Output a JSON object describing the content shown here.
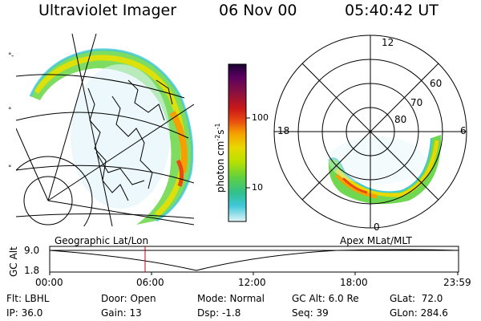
{
  "header": {
    "title": "Ultraviolet Imager",
    "date": "06 Nov 00",
    "time": "05:40:42 UT"
  },
  "colorbar": {
    "label_main": "photon cm",
    "label_exp1": "-2",
    "label_mid": "s",
    "label_exp2": "-1",
    "ticks": [
      "100",
      "10"
    ],
    "colors": [
      "#1a0030",
      "#5a0060",
      "#8a1040",
      "#c81818",
      "#e84a10",
      "#f5a000",
      "#e8d800",
      "#b8e000",
      "#60d040",
      "#30c090",
      "#40c8d8",
      "#90e0f0",
      "#e0f4f8"
    ]
  },
  "polar_plot": {
    "mlt_labels": [
      "12",
      "18",
      "6",
      "0"
    ],
    "lat_labels": [
      "60",
      "70",
      "80"
    ]
  },
  "panels": {
    "left_label": "Geographic Lat/Lon",
    "right_label": "Apex MLat/MLT"
  },
  "altitude_plot": {
    "axis_label": "GC Alt",
    "y_ticks": [
      "9.0",
      "1.8"
    ],
    "x_ticks": [
      "00:00",
      "06:00",
      "12:00",
      "18:00",
      "23:59"
    ],
    "marker_color": "#cc0000"
  },
  "info": {
    "flt": "Flt: LBHL",
    "ip": "IP: 36.0",
    "door": "Door: Open",
    "gain": "Gain: 13",
    "mode": "Mode: Normal",
    "dsp": "Dsp:    -1.8",
    "gc_alt": "GC Alt: 6.0 Re",
    "seq": "Seq: 39",
    "glat": "GLat:  72.0",
    "glon": "GLon: 284.6"
  }
}
